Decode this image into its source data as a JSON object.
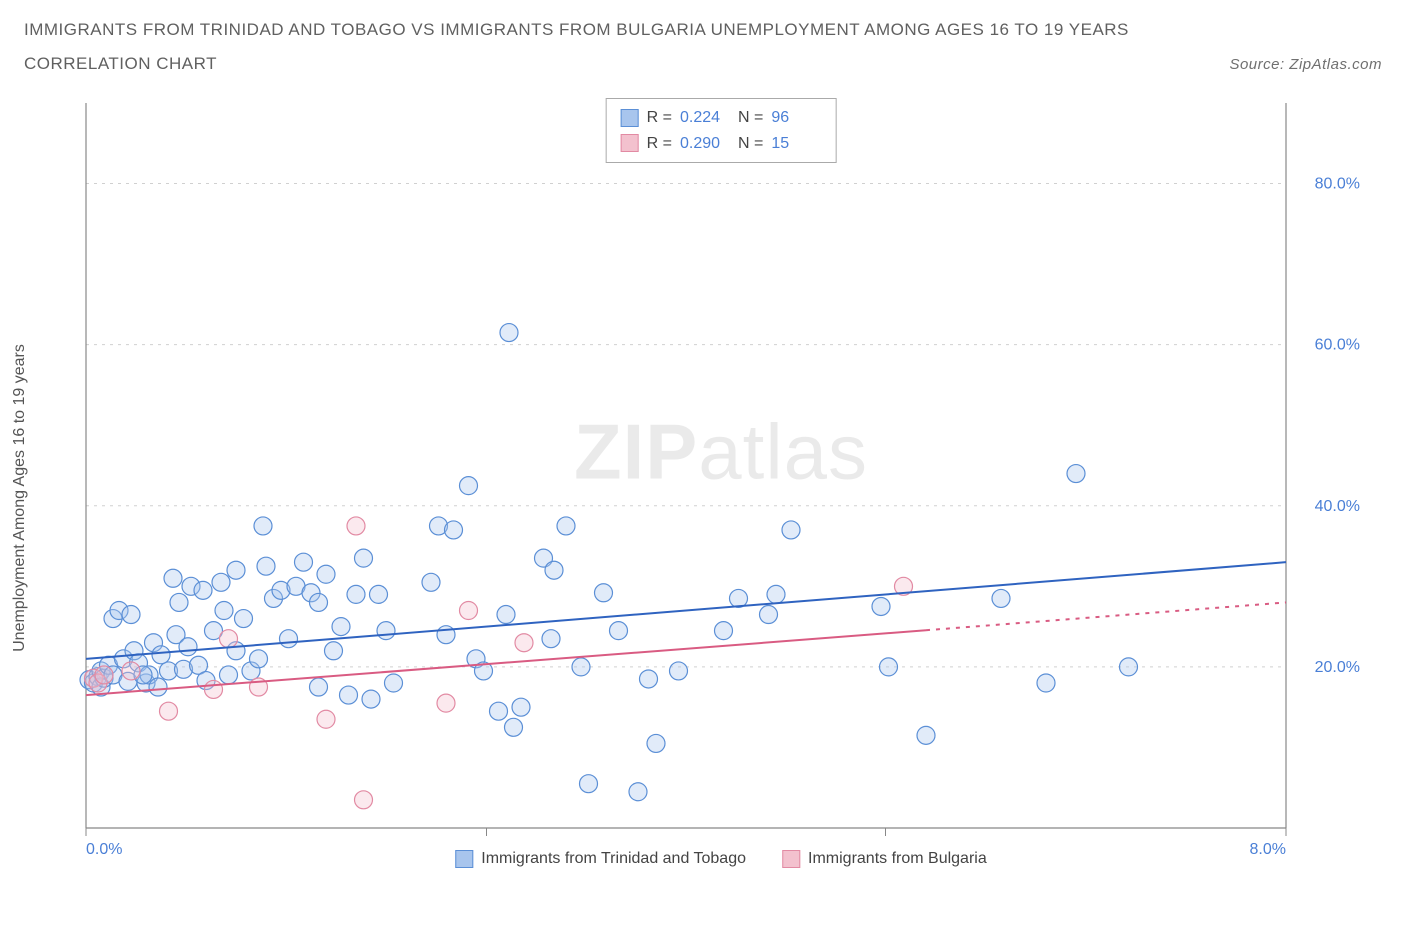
{
  "title_line1": "IMMIGRANTS FROM TRINIDAD AND TOBAGO VS IMMIGRANTS FROM BULGARIA UNEMPLOYMENT AMONG AGES 16 TO 19 YEARS",
  "title_line2": "CORRELATION CHART",
  "source_label": "Source: ZipAtlas.com",
  "ylabel": "Unemployment Among Ages 16 to 19 years",
  "watermark_bold": "ZIP",
  "watermark_light": "atlas",
  "chart": {
    "type": "scatter",
    "background_color": "#ffffff",
    "grid_color": "#d0d0d0",
    "axis_color": "#888888",
    "y_axis_side": "right",
    "xlim": [
      0.0,
      8.0
    ],
    "ylim": [
      0.0,
      90.0
    ],
    "xticks": [
      0.0,
      8.0
    ],
    "xtick_labels": [
      "0.0%",
      "8.0%"
    ],
    "yticks": [
      20.0,
      40.0,
      60.0,
      80.0
    ],
    "ytick_labels": [
      "20.0%",
      "40.0%",
      "60.0%",
      "80.0%"
    ],
    "xtick_minor": [
      2.67,
      5.33
    ],
    "tick_fontsize": 16,
    "tick_color": "#4a7fd6",
    "label_fontsize": 16,
    "label_color": "#555555",
    "marker_radius": 9,
    "marker_stroke_width": 1.2,
    "marker_fill_opacity": 0.35,
    "trend_line_width": 2.0,
    "series": [
      {
        "key": "tt",
        "name": "Immigrants from Trinidad and Tobago",
        "fill_color": "#a8c5ed",
        "stroke_color": "#5b8fd6",
        "trend_color": "#2f63c0",
        "R": "0.224",
        "N": "96",
        "trend": {
          "x1": 0.0,
          "y1": 21.0,
          "x2": 8.0,
          "y2": 33.0,
          "dash_after_x": null
        },
        "points": [
          [
            0.02,
            18.4
          ],
          [
            0.05,
            18.0
          ],
          [
            0.08,
            18.8
          ],
          [
            0.1,
            19.5
          ],
          [
            0.1,
            17.5
          ],
          [
            0.12,
            18.6
          ],
          [
            0.15,
            20.2
          ],
          [
            0.18,
            26.0
          ],
          [
            0.18,
            19.0
          ],
          [
            0.22,
            27.0
          ],
          [
            0.25,
            21.0
          ],
          [
            0.28,
            18.2
          ],
          [
            0.3,
            26.5
          ],
          [
            0.32,
            22.0
          ],
          [
            0.35,
            20.5
          ],
          [
            0.4,
            18.0
          ],
          [
            0.42,
            19.0
          ],
          [
            0.45,
            23.0
          ],
          [
            0.5,
            21.5
          ],
          [
            0.55,
            19.5
          ],
          [
            0.58,
            31.0
          ],
          [
            0.6,
            24.0
          ],
          [
            0.62,
            28.0
          ],
          [
            0.65,
            19.7
          ],
          [
            0.68,
            22.5
          ],
          [
            0.7,
            30.0
          ],
          [
            0.75,
            20.2
          ],
          [
            0.78,
            29.5
          ],
          [
            0.8,
            18.3
          ],
          [
            0.85,
            24.5
          ],
          [
            0.9,
            30.5
          ],
          [
            0.95,
            19.0
          ],
          [
            1.0,
            22.0
          ],
          [
            1.0,
            32.0
          ],
          [
            1.05,
            26.0
          ],
          [
            1.1,
            19.5
          ],
          [
            1.15,
            21.0
          ],
          [
            1.18,
            37.5
          ],
          [
            1.2,
            32.5
          ],
          [
            1.25,
            28.5
          ],
          [
            1.3,
            29.5
          ],
          [
            1.35,
            23.5
          ],
          [
            1.4,
            30.0
          ],
          [
            1.45,
            33.0
          ],
          [
            1.5,
            29.2
          ],
          [
            1.55,
            17.5
          ],
          [
            1.55,
            28.0
          ],
          [
            1.6,
            31.5
          ],
          [
            1.65,
            22.0
          ],
          [
            1.7,
            25.0
          ],
          [
            1.75,
            16.5
          ],
          [
            1.8,
            29.0
          ],
          [
            1.85,
            33.5
          ],
          [
            1.9,
            16.0
          ],
          [
            1.95,
            29.0
          ],
          [
            2.0,
            24.5
          ],
          [
            2.05,
            18.0
          ],
          [
            2.3,
            30.5
          ],
          [
            2.35,
            37.5
          ],
          [
            2.4,
            24.0
          ],
          [
            2.45,
            37.0
          ],
          [
            2.55,
            42.5
          ],
          [
            2.6,
            21.0
          ],
          [
            2.65,
            19.5
          ],
          [
            2.75,
            14.5
          ],
          [
            2.8,
            26.5
          ],
          [
            2.82,
            61.5
          ],
          [
            2.85,
            12.5
          ],
          [
            2.9,
            15.0
          ],
          [
            3.05,
            33.5
          ],
          [
            3.1,
            23.5
          ],
          [
            3.12,
            32.0
          ],
          [
            3.2,
            37.5
          ],
          [
            3.3,
            20.0
          ],
          [
            3.35,
            5.5
          ],
          [
            3.45,
            29.2
          ],
          [
            3.55,
            24.5
          ],
          [
            3.68,
            4.5
          ],
          [
            3.75,
            18.5
          ],
          [
            3.8,
            10.5
          ],
          [
            3.95,
            19.5
          ],
          [
            4.25,
            24.5
          ],
          [
            4.35,
            28.5
          ],
          [
            4.55,
            26.5
          ],
          [
            4.6,
            29.0
          ],
          [
            4.7,
            37.0
          ],
          [
            5.3,
            27.5
          ],
          [
            5.35,
            20.0
          ],
          [
            5.6,
            11.5
          ],
          [
            6.1,
            28.5
          ],
          [
            6.4,
            18.0
          ],
          [
            6.6,
            44.0
          ],
          [
            6.95,
            20.0
          ],
          [
            0.38,
            19.0
          ],
          [
            0.48,
            17.5
          ],
          [
            0.92,
            27.0
          ]
        ]
      },
      {
        "key": "bg",
        "name": "Immigrants from Bulgaria",
        "fill_color": "#f3c1ce",
        "stroke_color": "#e28aa3",
        "trend_color": "#d95b82",
        "R": "0.290",
        "N": "15",
        "trend": {
          "x1": 0.0,
          "y1": 16.5,
          "x2": 8.0,
          "y2": 28.0,
          "dash_after_x": 5.6
        },
        "points": [
          [
            0.05,
            18.6
          ],
          [
            0.08,
            18.0
          ],
          [
            0.12,
            19.0
          ],
          [
            0.3,
            19.5
          ],
          [
            0.55,
            14.5
          ],
          [
            0.85,
            17.2
          ],
          [
            0.95,
            23.5
          ],
          [
            1.15,
            17.5
          ],
          [
            1.6,
            13.5
          ],
          [
            1.8,
            37.5
          ],
          [
            1.85,
            3.5
          ],
          [
            2.4,
            15.5
          ],
          [
            2.55,
            27.0
          ],
          [
            2.92,
            23.0
          ],
          [
            5.45,
            30.0
          ]
        ]
      }
    ]
  },
  "legend_top": {
    "rows": [
      {
        "series_key": "tt",
        "R_label": "R =",
        "N_label": "N ="
      },
      {
        "series_key": "bg",
        "R_label": "R =",
        "N_label": "N ="
      }
    ]
  },
  "legend_bottom": {
    "items": [
      {
        "series_key": "tt"
      },
      {
        "series_key": "bg"
      }
    ]
  }
}
